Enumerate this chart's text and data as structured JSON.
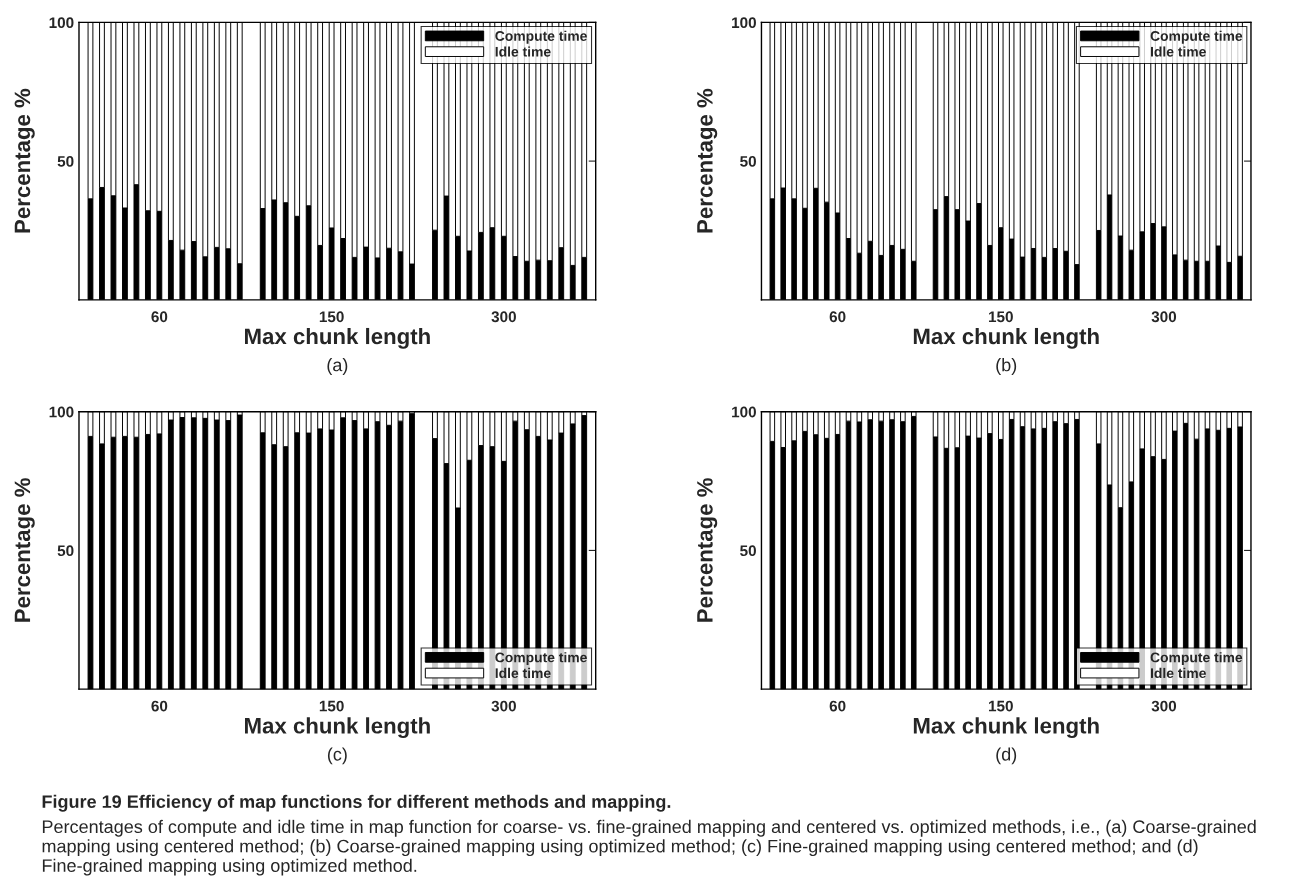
{
  "chart_data": [
    {
      "type": "bar",
      "stacked": true,
      "xlabel": "Max chunk length",
      "ylabel": "Percentage %",
      "ylim": [
        0,
        100
      ],
      "yticks": [
        50,
        100
      ],
      "legend": "top right",
      "annotations": [
        "(a)"
      ],
      "categories": [
        null,
        null,
        null,
        null,
        null,
        null,
        "60",
        null,
        null,
        null,
        null,
        null,
        null,
        null,
        null,
        null,
        null,
        null,
        null,
        null,
        null,
        "150",
        null,
        null,
        null,
        null,
        null,
        null,
        null,
        null,
        null,
        null,
        null,
        null,
        null,
        null,
        "300",
        null,
        null,
        null,
        null,
        null,
        null,
        null
      ],
      "series": [
        {
          "name": "Compute time",
          "color": "#000000",
          "values": [
            36.4,
            40.5,
            37.5,
            33.1,
            41.5,
            32.1,
            31.9,
            21.4,
            17.9,
            21,
            15.5,
            18.9,
            18.4,
            13,
            null,
            32.9,
            36,
            35,
            30.1,
            33.9,
            19.6,
            25.9,
            22.1,
            15.3,
            19,
            15.1,
            18.6,
            17.3,
            12.9,
            null,
            25.1,
            37.4,
            22.9,
            17.6,
            24.3,
            26,
            22.9,
            15.6,
            13.9,
            14.3,
            14.1,
            18.8,
            12.4,
            15.3
          ]
        },
        {
          "name": "Idle time",
          "color": "#ffffff",
          "values": [
            63.6,
            59.5,
            62.5,
            66.9,
            58.5,
            67.9,
            68.1,
            78.6,
            82.1,
            79,
            84.5,
            81.1,
            81.6,
            87,
            null,
            67.1,
            64,
            65,
            69.9,
            66.1,
            80.4,
            74.1,
            77.9,
            84.7,
            81,
            84.9,
            81.4,
            82.7,
            87.1,
            null,
            74.9,
            62.6,
            77.1,
            82.4,
            75.7,
            74,
            77.1,
            84.4,
            86.1,
            85.7,
            85.9,
            81.2,
            87.6,
            84.7
          ]
        }
      ]
    },
    {
      "type": "bar",
      "stacked": true,
      "xlabel": "Max chunk length",
      "ylabel": "Percentage %",
      "ylim": [
        0,
        100
      ],
      "yticks": [
        50,
        100
      ],
      "legend": "top right",
      "annotations": [
        "(b)"
      ],
      "categories": [
        null,
        null,
        null,
        null,
        null,
        null,
        "60",
        null,
        null,
        null,
        null,
        null,
        null,
        null,
        null,
        null,
        null,
        null,
        null,
        null,
        null,
        "150",
        null,
        null,
        null,
        null,
        null,
        null,
        null,
        null,
        null,
        null,
        null,
        null,
        null,
        null,
        "300",
        null,
        null,
        null,
        null,
        null,
        null,
        null
      ],
      "series": [
        {
          "name": "Compute time",
          "color": "#000000",
          "values": [
            36.4,
            40.3,
            36.4,
            33,
            40.2,
            35.2,
            31.3,
            22.1,
            16.8,
            21.1,
            16,
            19.6,
            18.2,
            13.9,
            null,
            32.5,
            37.2,
            32.5,
            28.4,
            34.7,
            19.6,
            26,
            21.9,
            15.4,
            18.5,
            15.3,
            18.5,
            17.5,
            12.7,
            null,
            25,
            37.8,
            23,
            17.9,
            24.5,
            27.5,
            26.3,
            16.2,
            14.3,
            13.9,
            13.9,
            19.4,
            13.5,
            15.7
          ]
        },
        {
          "name": "Idle time",
          "color": "#ffffff",
          "values": [
            63.6,
            59.7,
            63.6,
            67,
            59.8,
            64.8,
            68.7,
            77.9,
            83.2,
            78.9,
            84,
            80.4,
            81.8,
            86.1,
            null,
            67.5,
            62.8,
            67.5,
            71.6,
            65.3,
            80.4,
            74,
            78.1,
            84.6,
            81.5,
            84.7,
            81.5,
            82.5,
            87.3,
            null,
            75,
            62.2,
            77,
            82.1,
            75.5,
            72.5,
            73.7,
            83.8,
            85.7,
            86.1,
            86.1,
            80.6,
            86.5,
            84.3
          ]
        }
      ]
    },
    {
      "type": "bar",
      "stacked": true,
      "xlabel": "Max chunk length",
      "ylabel": "Percentage %",
      "ylim": [
        0,
        100
      ],
      "yticks": [
        50,
        100
      ],
      "legend": "bottom right",
      "annotations": [
        "(c)"
      ],
      "categories": [
        null,
        null,
        null,
        null,
        null,
        null,
        "60",
        null,
        null,
        null,
        null,
        null,
        null,
        null,
        null,
        null,
        null,
        null,
        null,
        null,
        null,
        "150",
        null,
        null,
        null,
        null,
        null,
        null,
        null,
        null,
        null,
        null,
        null,
        null,
        null,
        null,
        "300",
        null,
        null,
        null,
        null,
        null,
        null,
        null
      ],
      "series": [
        {
          "name": "Compute time",
          "color": "#000000",
          "values": [
            91.1,
            88.4,
            90.8,
            91.1,
            90.8,
            91.8,
            92,
            97,
            97.9,
            97.8,
            97.6,
            97,
            96.8,
            98.8,
            null,
            92.4,
            88.1,
            87.4,
            92.4,
            92.3,
            93.8,
            93.4,
            97.8,
            96.8,
            93.8,
            96.4,
            95.1,
            96.6,
            99.3,
            null,
            90.3,
            81.3,
            65.3,
            82.5,
            87.8,
            87.4,
            82.1,
            96.6,
            93.5,
            91.1,
            89.8,
            92.3,
            95.6,
            98.6
          ]
        },
        {
          "name": "Idle time",
          "color": "#ffffff",
          "values": [
            8.9,
            11.6,
            9.2,
            8.9,
            9.2,
            8.2,
            8,
            3,
            2.1,
            2.2,
            2.4,
            3,
            3.2,
            1.2,
            null,
            7.6,
            11.9,
            12.6,
            7.6,
            7.7,
            6.2,
            6.6,
            2.2,
            3.2,
            6.2,
            3.6,
            4.9,
            3.4,
            0.7,
            null,
            9.7,
            18.7,
            34.7,
            17.5,
            12.2,
            12.6,
            17.9,
            3.4,
            6.5,
            8.9,
            10.2,
            7.7,
            4.4,
            1.4
          ]
        }
      ]
    },
    {
      "type": "bar",
      "stacked": true,
      "xlabel": "Max chunk length",
      "ylabel": "Percentage %",
      "ylim": [
        0,
        100
      ],
      "yticks": [
        50,
        100
      ],
      "legend": "bottom right",
      "annotations": [
        "(d)",
        "Figure 19 Efficiency of map functions for different methods and mapping.",
        "Percentages of compute and idle time in map function for coarse- vs. fine-grained mapping and centered vs. optimized methods, i.e., (a) Coarse-grained mapping using centered method; (b) Coarse-grained mapping using optimized method; (c) Fine-grained mapping using centered method; and (d) Fine-grained mapping using optimized method."
      ],
      "categories": [
        null,
        null,
        null,
        null,
        null,
        null,
        "60",
        null,
        null,
        null,
        null,
        null,
        null,
        null,
        null,
        null,
        null,
        null,
        null,
        null,
        null,
        "150",
        null,
        null,
        null,
        null,
        null,
        null,
        null,
        null,
        null,
        null,
        null,
        null,
        null,
        null,
        "300",
        null,
        null,
        null,
        null,
        null,
        null,
        null
      ],
      "series": [
        {
          "name": "Compute time",
          "color": "#000000",
          "values": [
            89.3,
            87.1,
            89.5,
            92.9,
            91.7,
            90.4,
            91.8,
            96.6,
            96.3,
            97.1,
            96.6,
            97.1,
            96.4,
            98.3,
            null,
            90.9,
            86.8,
            87,
            91.2,
            90.5,
            92.1,
            90,
            97.2,
            94.6,
            93.8,
            94,
            96.4,
            95.7,
            97.2,
            null,
            88.4,
            73.6,
            65.4,
            74.7,
            86.6,
            83.8,
            82.8,
            93,
            95.8,
            90.1,
            93.8,
            93.3,
            94,
            94.5
          ]
        },
        {
          "name": "Idle time",
          "color": "#ffffff",
          "values": [
            10.7,
            12.9,
            10.5,
            7.1,
            8.3,
            9.6,
            8.2,
            3.4,
            3.7,
            2.9,
            3.4,
            2.9,
            3.6,
            1.7,
            null,
            9.1,
            13.2,
            13,
            8.8,
            9.5,
            7.9,
            10,
            2.8,
            5.4,
            6.2,
            6,
            3.6,
            4.3,
            2.8,
            null,
            11.6,
            26.4,
            34.6,
            25.3,
            13.4,
            16.2,
            17.2,
            7,
            4.2,
            9.9,
            6.2,
            6.7,
            6,
            5.5
          ]
        }
      ]
    }
  ]
}
